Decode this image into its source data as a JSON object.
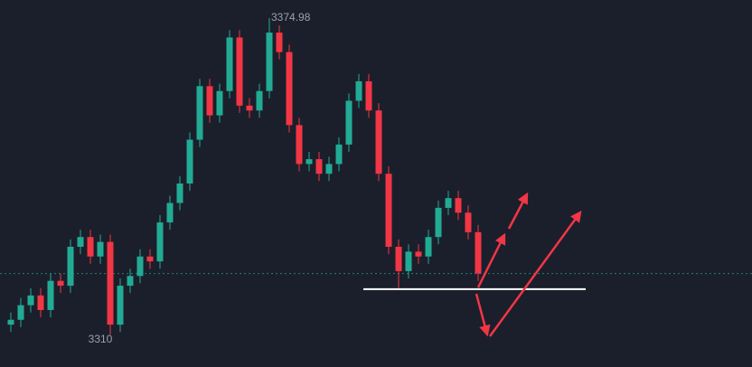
{
  "chart_data": {
    "type": "candlestick",
    "open": [
      3312,
      3313,
      3316,
      3318,
      3315,
      3321,
      3320,
      3328,
      3330,
      3326,
      3329,
      3312,
      3320,
      3322,
      3326,
      3325,
      3333,
      3337,
      3341,
      3350,
      3361,
      3355,
      3360,
      3371,
      3357,
      3356,
      3360,
      3372,
      3368,
      3353,
      3345,
      3346,
      3343,
      3345,
      3349,
      3358,
      3362,
      3356,
      3343,
      3328,
      3323,
      3327,
      3326,
      3330,
      3336,
      3338,
      3335,
      3331
    ],
    "high": [
      3314.5,
      3317.5,
      3319.5,
      3319.5,
      3322.5,
      3322.5,
      3329.5,
      3331.5,
      3331.5,
      3330.5,
      3330.5,
      3321.5,
      3323.5,
      3327.5,
      3327.5,
      3334.5,
      3338.5,
      3342.5,
      3351.5,
      3362.5,
      3362.5,
      3361.5,
      3372.5,
      3372.5,
      3358.5,
      3361.5,
      3374.98,
      3373.5,
      3369.5,
      3354.5,
      3347.5,
      3347.5,
      3346.5,
      3350.5,
      3359.5,
      3363.5,
      3363.5,
      3357.5,
      3344.5,
      3329.5,
      3328.5,
      3328.5,
      3331.5,
      3337.5,
      3339.5,
      3339.5,
      3336.5,
      3332.5
    ],
    "low": [
      3310.5,
      3311.5,
      3314.5,
      3313.5,
      3313.5,
      3318.5,
      3318.5,
      3326.5,
      3324.5,
      3324.5,
      3310,
      3310.5,
      3318.5,
      3320.5,
      3323.5,
      3323.5,
      3331.5,
      3335.5,
      3339.5,
      3348.5,
      3353.5,
      3353.5,
      3358.5,
      3355.5,
      3354.5,
      3354.5,
      3358.5,
      3366.5,
      3351.5,
      3343.5,
      3343.5,
      3341.5,
      3341.5,
      3343.5,
      3347.5,
      3356.5,
      3354.5,
      3341.5,
      3326.5,
      3319.5,
      3321.5,
      3324.5,
      3324.5,
      3328.5,
      3334.5,
      3333.5,
      3329.5,
      3321
    ],
    "close": [
      3313,
      3316,
      3318,
      3315,
      3321,
      3320,
      3328,
      3330,
      3326,
      3329,
      3312,
      3320,
      3322,
      3326,
      3325,
      3333,
      3337,
      3341,
      3350,
      3361,
      3355,
      3360,
      3371,
      3357,
      3356,
      3360,
      3372,
      3368,
      3353,
      3345,
      3346,
      3343,
      3345,
      3349,
      3358,
      3362,
      3356,
      3343,
      3328,
      3323,
      3327,
      3326,
      3330,
      3336,
      3338,
      3335,
      3331,
      3322.5
    ],
    "up_color": "#22ab94",
    "down_color": "#f23645",
    "ylim": [
      3303.3,
      3378.7
    ],
    "support_level": 3319.3
  }
}
